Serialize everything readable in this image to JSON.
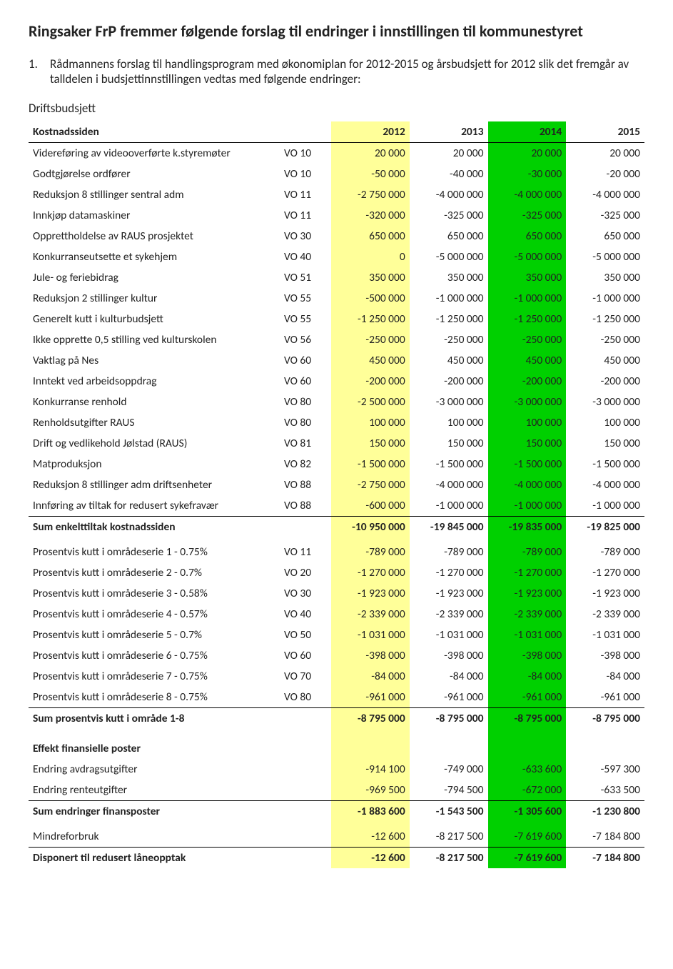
{
  "title": "Ringsaker FrP fremmer følgende forslag til endringer i innstillingen til kommunestyret",
  "intro_num": "1.",
  "intro_text": "Rådmannens forslag til handlingsprogram med økonomiplan for 2012-2015 og årsbudsjett for 2012 slik det fremgår av talldelen i budsjettinnstillingen vedtas med følgende endringer:",
  "subheading": "Driftsbudsjett",
  "colors": {
    "highlight_2012": "#ffff99",
    "highlight_2014": "#00d000",
    "border": "#000000"
  },
  "columns": {
    "c0": "Kostnadssiden",
    "c1": "",
    "y2012": "2012",
    "y2013": "2013",
    "y2014": "2014",
    "y2015": "2015"
  },
  "section1_rows": [
    {
      "label": "Videreføring av videooverførte k.styremøter",
      "code": "VO 10",
      "v": [
        "20 000",
        "20 000",
        "20 000",
        "20 000"
      ]
    },
    {
      "label": "Godtgjørelse ordfører",
      "code": "VO 10",
      "v": [
        "-50 000",
        "-40 000",
        "-30 000",
        "-20 000"
      ]
    },
    {
      "label": "Reduksjon 8 stillinger sentral adm",
      "code": "VO 11",
      "v": [
        "-2 750 000",
        "-4 000 000",
        "-4 000 000",
        "-4 000 000"
      ]
    },
    {
      "label": "Innkjøp datamaskiner",
      "code": "VO 11",
      "v": [
        "-320 000",
        "-325 000",
        "-325 000",
        "-325 000"
      ]
    },
    {
      "label": "Opprettholdelse av RAUS prosjektet",
      "code": "VO 30",
      "v": [
        "650 000",
        "650 000",
        "650 000",
        "650 000"
      ]
    },
    {
      "label": "Konkurranseutsette et sykehjem",
      "code": "VO 40",
      "v": [
        "0",
        "-5 000 000",
        "-5 000 000",
        "-5 000 000"
      ]
    },
    {
      "label": "Jule- og feriebidrag",
      "code": "VO 51",
      "v": [
        "350 000",
        "350 000",
        "350 000",
        "350 000"
      ]
    },
    {
      "label": "Reduksjon 2 stillinger kultur",
      "code": "VO 55",
      "v": [
        "-500 000",
        "-1 000 000",
        "-1 000 000",
        "-1 000 000"
      ]
    },
    {
      "label": "Generelt kutt i kulturbudsjett",
      "code": "VO 55",
      "v": [
        "-1 250 000",
        "-1 250 000",
        "-1 250 000",
        "-1 250 000"
      ]
    },
    {
      "label": "Ikke opprette 0,5 stilling ved kulturskolen",
      "code": "VO 56",
      "v": [
        "-250 000",
        "-250 000",
        "-250 000",
        "-250 000"
      ]
    },
    {
      "label": "Vaktlag på Nes",
      "code": "VO 60",
      "v": [
        "450 000",
        "450 000",
        "450 000",
        "450 000"
      ]
    },
    {
      "label": "Inntekt ved arbeidsoppdrag",
      "code": "VO 60",
      "v": [
        "-200 000",
        "-200 000",
        "-200 000",
        "-200 000"
      ]
    },
    {
      "label": "Konkurranse renhold",
      "code": "VO 80",
      "v": [
        "-2 500 000",
        "-3 000 000",
        "-3 000 000",
        "-3 000 000"
      ]
    },
    {
      "label": "Renholdsutgifter RAUS",
      "code": "VO 80",
      "v": [
        "100 000",
        "100 000",
        "100 000",
        "100 000"
      ]
    },
    {
      "label": "Drift og vedlikehold Jølstad (RAUS)",
      "code": "VO 81",
      "v": [
        "150 000",
        "150 000",
        "150 000",
        "150 000"
      ]
    },
    {
      "label": "Matproduksjon",
      "code": "VO 82",
      "v": [
        "-1 500 000",
        "-1 500 000",
        "-1 500 000",
        "-1 500 000"
      ]
    },
    {
      "label": "Reduksjon 8 stillinger adm driftsenheter",
      "code": "VO 88",
      "v": [
        "-2 750 000",
        "-4 000 000",
        "-4 000 000",
        "-4 000 000"
      ]
    },
    {
      "label": "Innføring av tiltak for redusert sykefravær",
      "code": "VO 88",
      "v": [
        "-600 000",
        "-1 000 000",
        "-1 000 000",
        "-1 000 000"
      ]
    }
  ],
  "section1_sum": {
    "label": "Sum enkelttiltak kostnadssiden",
    "v": [
      "-10 950 000",
      "-19 845 000",
      "-19 835 000",
      "-19 825 000"
    ]
  },
  "section2_rows": [
    {
      "label": "Prosentvis kutt i områdeserie 1 - 0.75%",
      "code": "VO 11",
      "v": [
        "-789 000",
        "-789 000",
        "-789 000",
        "-789 000"
      ]
    },
    {
      "label": "Prosentvis kutt i områdeserie 2 - 0.7%",
      "code": "VO 20",
      "v": [
        "-1 270 000",
        "-1 270 000",
        "-1 270 000",
        "-1 270 000"
      ]
    },
    {
      "label": "Prosentvis kutt i områdeserie 3 - 0.58%",
      "code": "VO 30",
      "v": [
        "-1 923 000",
        "-1 923 000",
        "-1 923 000",
        "-1 923 000"
      ]
    },
    {
      "label": "Prosentvis kutt i områdeserie 4 - 0.57%",
      "code": "VO 40",
      "v": [
        "-2 339 000",
        "-2 339 000",
        "-2 339 000",
        "-2 339 000"
      ]
    },
    {
      "label": "Prosentvis kutt i områdeserie 5 - 0.7%",
      "code": "VO 50",
      "v": [
        "-1 031 000",
        "-1 031 000",
        "-1 031 000",
        "-1 031 000"
      ]
    },
    {
      "label": "Prosentvis kutt i områdeserie 6 - 0.75%",
      "code": "VO 60",
      "v": [
        "-398 000",
        "-398 000",
        "-398 000",
        "-398 000"
      ]
    },
    {
      "label": "Prosentvis kutt i områdeserie 7 - 0.75%",
      "code": "VO 70",
      "v": [
        "-84 000",
        "-84 000",
        "-84 000",
        "-84 000"
      ]
    },
    {
      "label": "Prosentvis kutt i områdeserie 8 - 0.75%",
      "code": "VO 80",
      "v": [
        "-961 000",
        "-961 000",
        "-961 000",
        "-961 000"
      ]
    }
  ],
  "section2_sum": {
    "label": "Sum prosentvis kutt i område 1-8",
    "v": [
      "-8 795 000",
      "-8 795 000",
      "-8 795 000",
      "-8 795 000"
    ]
  },
  "section3_title": "Effekt finansielle poster",
  "section3_rows": [
    {
      "label": "Endring avdragsutgifter",
      "code": "",
      "v": [
        "-914 100",
        "-749 000",
        "-633 600",
        "-597 300"
      ]
    },
    {
      "label": "Endring renteutgifter",
      "code": "",
      "v": [
        "-969 500",
        "-794 500",
        "-672 000",
        "-633 500"
      ]
    }
  ],
  "section3_sum": {
    "label": "Sum endringer finansposter",
    "v": [
      "-1 883 600",
      "-1 543 500",
      "-1 305 600",
      "-1 230 800"
    ]
  },
  "section4_rows": [
    {
      "label": "Mindreforbruk",
      "code": "",
      "v": [
        "-12 600",
        "-8 217 500",
        "-7 619 600",
        "-7 184 800"
      ]
    }
  ],
  "section4_sum": {
    "label": "Disponert til redusert låneopptak",
    "v": [
      "-12 600",
      "-8 217 500",
      "-7 619 600",
      "-7 184 800"
    ]
  }
}
